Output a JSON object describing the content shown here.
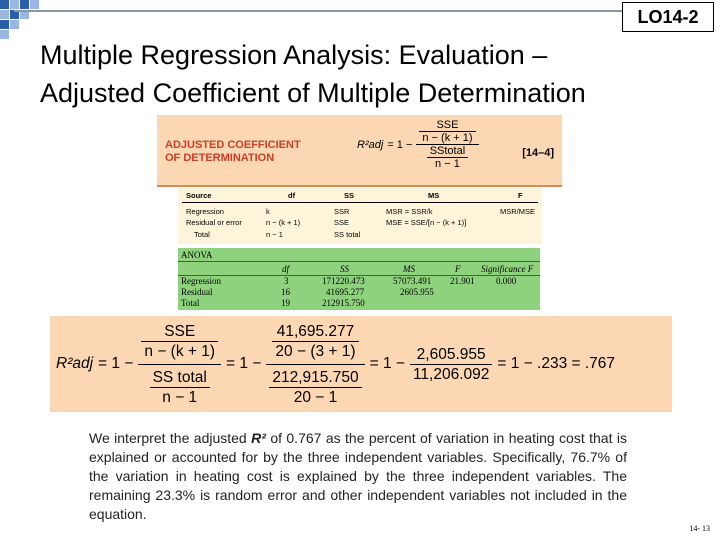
{
  "lo_badge": "LO14-2",
  "title": {
    "line1": "Multiple Regression Analysis: Evaluation –",
    "line2": "Adjusted Coefficient of Multiple Determination"
  },
  "formula_box": {
    "label_line1": "ADJUSTED COEFFICIENT",
    "label_line2": "OF DETERMINATION",
    "lhs": "R²adj",
    "equals": "= 1 −",
    "num_num": "SSE",
    "num_den": "n − (k + 1)",
    "den_num": "SStotal",
    "den_den": "n − 1",
    "eq_number": "[14–4]"
  },
  "anova_template": {
    "headers": [
      "Source",
      "df",
      "SS",
      "MS",
      "F"
    ],
    "rows": [
      [
        "Regression",
        "k",
        "SSR",
        "MSR = SSR/k",
        "MSR/MSE"
      ],
      [
        "Residual or error",
        "n − (k + 1)",
        "SSE",
        "MSE = SSE/[n − (k + 1)]",
        ""
      ],
      [
        "Total",
        "n − 1",
        "SS total",
        "",
        ""
      ]
    ]
  },
  "anova_table": {
    "title": "ANOVA",
    "headers": [
      "df",
      "SS",
      "MS",
      "F",
      "Significance F"
    ],
    "rows": [
      [
        "Regression",
        "3",
        "171220.473",
        "57073.491",
        "21.901",
        "0.000"
      ],
      [
        "Residual",
        "16",
        "41695.277",
        "2605.955",
        "",
        ""
      ],
      [
        "Total",
        "19",
        "212915.750",
        "",
        "",
        ""
      ]
    ]
  },
  "calculation": {
    "lhs": "R²adj",
    "one_minus": "= 1 −",
    "f1_nn": "SSE",
    "f1_nd": "n − (k + 1)",
    "f1_dn": "SS total",
    "f1_dd": "n − 1",
    "step2": "= 1 −",
    "f2_nn": "41,695.277",
    "f2_nd": "20 − (3 + 1)",
    "f2_dn": "212,915.750",
    "f2_dd": "20 − 1",
    "step3": "= 1 −",
    "f3_n": "2,605.955",
    "f3_d": "11,206.092",
    "step4": "= 1 − .233 = .767"
  },
  "paragraph": {
    "before": "We interpret the adjusted ",
    "r2": "R²",
    "after": " of 0.767 as the percent of variation in heating cost that is explained or accounted for by the three independent variables. Specifically, 76.7% of the variation in heating cost is explained by the three independent variables.  The remaining 23.3% is random error and other independent variables not included in the equation."
  },
  "page_number": "14- 13"
}
